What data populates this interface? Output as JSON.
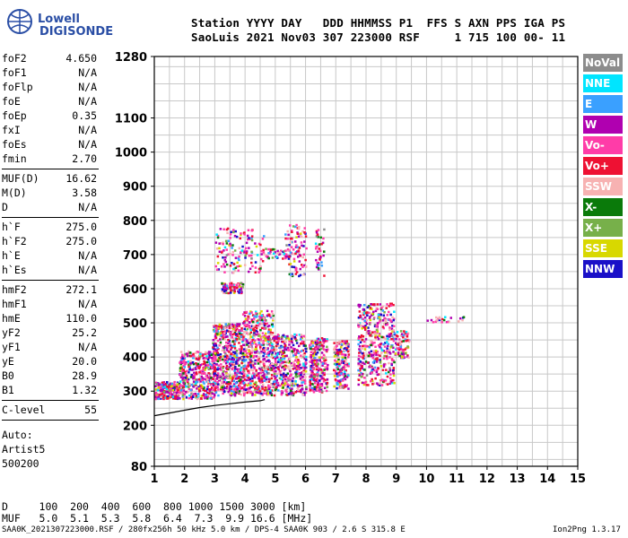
{
  "logo": {
    "line1": "Lowell",
    "line2": "DIGISONDE"
  },
  "header": {
    "line1": "Station YYYY DAY   DDD HHMMSS P1  FFS S AXN PPS IGA PS",
    "line2": "SaoLuis 2021 Nov03 307 223000 RSF     1 715 100 00- 11"
  },
  "sidebar": {
    "groups": [
      [
        {
          "k": "foF2",
          "v": "4.650"
        },
        {
          "k": "foF1",
          "v": "N/A"
        },
        {
          "k": "foFlp",
          "v": "N/A"
        },
        {
          "k": "foE",
          "v": "N/A"
        },
        {
          "k": "foEp",
          "v": "0.35"
        },
        {
          "k": "fxI",
          "v": "N/A"
        },
        {
          "k": "foEs",
          "v": "N/A"
        },
        {
          "k": "fmin",
          "v": "2.70"
        }
      ],
      [
        {
          "k": "MUF(D)",
          "v": "16.62"
        },
        {
          "k": "M(D)",
          "v": "3.58"
        },
        {
          "k": "D",
          "v": "N/A"
        }
      ],
      [
        {
          "k": "h`F",
          "v": "275.0"
        },
        {
          "k": "h`F2",
          "v": "275.0"
        },
        {
          "k": "h`E",
          "v": "N/A"
        },
        {
          "k": "h`Es",
          "v": "N/A"
        }
      ],
      [
        {
          "k": "hmF2",
          "v": "272.1"
        },
        {
          "k": "hmF1",
          "v": "N/A"
        },
        {
          "k": "hmE",
          "v": "110.0"
        },
        {
          "k": "yF2",
          "v": "25.2"
        },
        {
          "k": "yF1",
          "v": "N/A"
        },
        {
          "k": "yE",
          "v": "20.0"
        },
        {
          "k": "B0",
          "v": "28.9"
        },
        {
          "k": "B1",
          "v": "1.32"
        }
      ],
      [
        {
          "k": "C-level",
          "v": "55"
        }
      ]
    ],
    "auto_label": "Auto:",
    "artist": "Artist5",
    "code": "500200"
  },
  "legend": [
    {
      "label": "NoVal",
      "color": "#8c8c8c"
    },
    {
      "label": "NNE",
      "color": "#00e5ff"
    },
    {
      "label": "E",
      "color": "#3aa0ff"
    },
    {
      "label": "W",
      "color": "#b000b0"
    },
    {
      "label": "Vo-",
      "color": "#ff3ca8"
    },
    {
      "label": "Vo+",
      "color": "#ee1133"
    },
    {
      "label": "SSW",
      "color": "#f7b2b2"
    },
    {
      "label": "X-",
      "color": "#0a7a0a"
    },
    {
      "label": "X+",
      "color": "#77b04a"
    },
    {
      "label": "SSE",
      "color": "#d8d800"
    },
    {
      "label": "NNW",
      "color": "#1a10c8"
    }
  ],
  "chart_data": {
    "type": "scatter",
    "xlim": [
      1,
      15
    ],
    "ylim": [
      80,
      1280
    ],
    "x_ticks": [
      "1",
      "2",
      "3",
      "4",
      "5",
      "6",
      "7",
      "8",
      "9",
      "10",
      "11",
      "12",
      "13",
      "14",
      "15"
    ],
    "y_ticks": [
      "80",
      "200",
      "300",
      "400",
      "500",
      "600",
      "700",
      "800",
      "900",
      "1000",
      "1100",
      "1280"
    ],
    "y_tick_values": [
      80,
      200,
      300,
      400,
      500,
      600,
      700,
      800,
      900,
      1000,
      1100,
      1280
    ],
    "grid": true,
    "trace_x": [
      1.0,
      1.5,
      2.0,
      2.5,
      3.0,
      3.5,
      4.0,
      4.5,
      4.65
    ],
    "trace_y": [
      228,
      236,
      244,
      252,
      258,
      263,
      268,
      272,
      275
    ],
    "clusters": [
      {
        "x": [
          1.0,
          1.8
        ],
        "y": [
          280,
          330
        ],
        "n": 260
      },
      {
        "x": [
          1.8,
          3.0
        ],
        "y": [
          280,
          420
        ],
        "n": 420
      },
      {
        "x": [
          2.9,
          3.9
        ],
        "y": [
          290,
          500
        ],
        "n": 520
      },
      {
        "x": [
          3.9,
          4.9
        ],
        "y": [
          290,
          540
        ],
        "n": 560
      },
      {
        "x": [
          4.9,
          6.0
        ],
        "y": [
          290,
          470
        ],
        "n": 420
      },
      {
        "x": [
          6.1,
          6.7
        ],
        "y": [
          300,
          460
        ],
        "n": 260
      },
      {
        "x": [
          6.9,
          7.4
        ],
        "y": [
          310,
          450
        ],
        "n": 180
      },
      {
        "x": [
          7.7,
          8.9
        ],
        "y": [
          320,
          560
        ],
        "n": 420
      },
      {
        "x": [
          8.9,
          9.4
        ],
        "y": [
          400,
          480
        ],
        "n": 90
      },
      {
        "x": [
          3.2,
          3.9
        ],
        "y": [
          590,
          620
        ],
        "n": 110
      },
      {
        "x": [
          4.5,
          5.8
        ],
        "y": [
          690,
          720
        ],
        "n": 60
      },
      {
        "x": [
          3.0,
          4.6
        ],
        "y": [
          650,
          780
        ],
        "n": 140
      },
      {
        "x": [
          5.3,
          6.0
        ],
        "y": [
          640,
          790
        ],
        "n": 90
      },
      {
        "x": [
          6.3,
          6.6
        ],
        "y": [
          640,
          780
        ],
        "n": 40
      },
      {
        "x": [
          10.0,
          11.2
        ],
        "y": [
          505,
          520
        ],
        "n": 25
      }
    ]
  },
  "table": {
    "row1": "D     100  200  400  600  800 1000 1500 3000 [km]",
    "row2": "MUF   5.0  5.1  5.3  5.8  6.4  7.3  9.9 16.6 [MHz]"
  },
  "footer": {
    "left": "SAA0K_2021307223000.RSF / 280fx256h 50 kHz 5.0 km / DPS-4 SAA0K 903 / 2.6 S 315.8 E",
    "right": "Ion2Png 1.3.17"
  }
}
